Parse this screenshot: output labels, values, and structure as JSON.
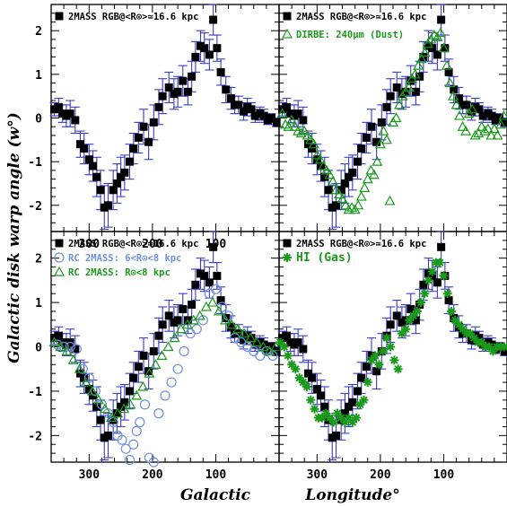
{
  "figure": {
    "ylabel": "Galactic disk warp angle (w°)",
    "xlabel_left": "Galactic",
    "xlabel_right": "Longitude°"
  },
  "colors": {
    "black": "#000000",
    "errorbar": "#3a3ad0",
    "green": "#1a9a1a",
    "blue": "#6f8fe0"
  },
  "chart_data": [
    {
      "type": "scatter",
      "panel": "top-left",
      "xlim": [
        360,
        0
      ],
      "ylim": [
        -2.6,
        2.6
      ],
      "xticks": [
        300,
        200,
        100
      ],
      "yticks": [
        -2,
        -1,
        0,
        1,
        2
      ],
      "legend": [
        {
          "marker": "filled-square",
          "color": "#000000",
          "text": "2MASS RGB@<R⊙>≃16.6 kpc"
        }
      ],
      "series": [
        {
          "name": "2MASS RGB@<R⊙>≃16.6 kpc",
          "marker": "filled-square",
          "errorbars": true,
          "ref": "rgb"
        }
      ]
    },
    {
      "type": "scatter",
      "panel": "top-right",
      "xlim": [
        360,
        0
      ],
      "ylim": [
        -2.6,
        2.6
      ],
      "legend": [
        {
          "marker": "filled-square",
          "color": "#000000",
          "text": "2MASS RGB@<R⊙>≃16.6 kpc"
        },
        {
          "marker": "open-triangle",
          "color": "#1a9a1a",
          "text": "DIRBE: 240μm (Dust)"
        }
      ],
      "series": [
        {
          "name": "2MASS RGB@<R⊙>≃16.6 kpc",
          "marker": "filled-square",
          "errorbars": true,
          "ref": "rgb"
        },
        {
          "name": "DIRBE: 240μm (Dust)",
          "marker": "open-triangle",
          "color": "#1a9a1a",
          "x": [
            355,
            350,
            345,
            340,
            335,
            330,
            325,
            320,
            315,
            310,
            305,
            300,
            295,
            290,
            285,
            280,
            275,
            270,
            265,
            260,
            255,
            250,
            245,
            240,
            235,
            230,
            225,
            220,
            215,
            210,
            205,
            200,
            195,
            190,
            185,
            180,
            175,
            170,
            165,
            160,
            155,
            150,
            145,
            140,
            135,
            130,
            125,
            120,
            115,
            110,
            105,
            100,
            95,
            90,
            85,
            80,
            75,
            70,
            65,
            60,
            55,
            50,
            45,
            40,
            35,
            30,
            25,
            20,
            15,
            10,
            5
          ],
          "y": [
            0.1,
            -0.15,
            -0.2,
            -0.05,
            -0.2,
            -0.3,
            -0.35,
            -0.3,
            -0.4,
            -0.5,
            -0.6,
            -0.85,
            -0.95,
            -1.1,
            -1.2,
            -1.3,
            -1.45,
            -1.65,
            -1.75,
            -1.85,
            -2.0,
            -2.1,
            -2.05,
            -2.1,
            -2.0,
            -1.8,
            -1.6,
            -1.4,
            -1.2,
            -1.3,
            -1.0,
            -0.6,
            -0.3,
            -0.5,
            -1.9,
            -0.1,
            0.0,
            0.3,
            0.5,
            0.6,
            0.7,
            0.9,
            1.0,
            1.2,
            1.35,
            1.5,
            1.7,
            1.8,
            1.9,
            1.85,
            1.95,
            1.6,
            1.2,
            0.8,
            0.5,
            0.3,
            0.05,
            -0.2,
            -0.3,
            0.1,
            0.2,
            -0.4,
            -0.35,
            -0.2,
            -0.3,
            -0.25,
            -0.4,
            -0.25,
            -0.4,
            -0.15,
            0.05
          ]
        }
      ]
    },
    {
      "type": "scatter",
      "panel": "bottom-left",
      "xlim": [
        360,
        0
      ],
      "ylim": [
        -2.6,
        2.6
      ],
      "xticks": [
        300,
        200,
        100
      ],
      "yticks": [
        -2,
        -1,
        0,
        1,
        2
      ],
      "legend": [
        {
          "marker": "filled-square",
          "color": "#000000",
          "text": "2MASS RGB@<R⊙>≃16.6 kpc"
        },
        {
          "marker": "open-circle",
          "color": "#6f8fe0",
          "text": "RC 2MASS: 6<R⊙<8 kpc"
        },
        {
          "marker": "open-triangle",
          "color": "#1a9a1a",
          "text": "RC 2MASS: R⊙<8 kpc"
        }
      ],
      "series": [
        {
          "name": "2MASS RGB@<R⊙>≃16.6 kpc",
          "marker": "filled-square",
          "errorbars": true,
          "ref": "rgb"
        },
        {
          "name": "RC 2MASS: 6<R⊙<8 kpc",
          "marker": "open-circle",
          "color": "#6f8fe0",
          "x": [
            350,
            340,
            330,
            320,
            310,
            300,
            290,
            280,
            270,
            262,
            255,
            248,
            242,
            236,
            230,
            225,
            220,
            212,
            205,
            198,
            190,
            180,
            170,
            160,
            150,
            140,
            130,
            120,
            110,
            100,
            90,
            80,
            70,
            60,
            50,
            40,
            30,
            20,
            10
          ],
          "y": [
            0.05,
            0.0,
            0.0,
            -0.05,
            -0.5,
            -0.7,
            -1.0,
            -1.3,
            -1.5,
            -1.7,
            -2.0,
            -2.1,
            -2.3,
            -2.55,
            -2.2,
            -1.9,
            -1.7,
            -1.3,
            -2.5,
            -2.6,
            -1.5,
            -1.1,
            -0.8,
            -0.5,
            -0.1,
            0.3,
            0.4,
            0.6,
            1.2,
            1.3,
            0.9,
            0.7,
            0.2,
            0.1,
            0.0,
            -0.1,
            -0.2,
            -0.1,
            -0.2
          ]
        },
        {
          "name": "RC 2MASS: R⊙<8 kpc",
          "marker": "open-triangle",
          "color": "#1a9a1a",
          "x": [
            355,
            345,
            335,
            325,
            315,
            305,
            295,
            285,
            275,
            265,
            255,
            245,
            235,
            225,
            215,
            205,
            195,
            185,
            175,
            165,
            155,
            145,
            135,
            125,
            115,
            105,
            95,
            85,
            75,
            65,
            55,
            45,
            35,
            25,
            15,
            5
          ],
          "y": [
            0.1,
            0.0,
            -0.1,
            -0.3,
            -0.5,
            -0.8,
            -1.0,
            -1.2,
            -1.4,
            -1.6,
            -1.5,
            -1.4,
            -1.3,
            -1.1,
            -0.9,
            -0.6,
            -0.4,
            -0.2,
            0.0,
            0.2,
            0.4,
            0.5,
            0.6,
            0.7,
            0.9,
            1.0,
            0.8,
            0.6,
            0.5,
            0.4,
            0.3,
            0.2,
            0.1,
            0.0,
            -0.1,
            0.0
          ]
        }
      ]
    },
    {
      "type": "scatter",
      "panel": "bottom-right",
      "xlim": [
        360,
        0
      ],
      "ylim": [
        -2.6,
        2.6
      ],
      "xticks": [
        300,
        200,
        100
      ],
      "legend": [
        {
          "marker": "filled-square",
          "color": "#000000",
          "text": "2MASS RGB@<R⊙>≃16.6 kpc"
        },
        {
          "marker": "asterisk",
          "color": "#1a9a1a",
          "text": "HI (Gas)"
        }
      ],
      "series": [
        {
          "name": "2MASS RGB@<R⊙>≃16.6 kpc",
          "marker": "filled-square",
          "errorbars": true,
          "ref": "rgb"
        },
        {
          "name": "HI (Gas)",
          "marker": "asterisk",
          "color": "#1a9a1a",
          "x": [
            358,
            352,
            346,
            340,
            334,
            328,
            322,
            316,
            310,
            304,
            298,
            292,
            286,
            280,
            274,
            268,
            262,
            256,
            250,
            244,
            238,
            232,
            226,
            220,
            214,
            208,
            202,
            196,
            190,
            184,
            178,
            172,
            166,
            160,
            154,
            148,
            142,
            136,
            130,
            124,
            118,
            112,
            106,
            100,
            94,
            88,
            82,
            76,
            70,
            64,
            58,
            52,
            46,
            40,
            34,
            28,
            22,
            16,
            10,
            4
          ],
          "y": [
            0.1,
            0.0,
            -0.2,
            -0.4,
            -0.5,
            -0.7,
            -0.8,
            -0.9,
            -1.2,
            -1.4,
            -1.6,
            -1.6,
            -1.5,
            -1.6,
            -1.7,
            -1.5,
            -1.6,
            -1.7,
            -1.6,
            -1.7,
            -1.6,
            -1.3,
            -1.2,
            -0.8,
            -0.3,
            -0.2,
            -0.4,
            -0.1,
            0.2,
            0.0,
            -0.3,
            -0.5,
            0.3,
            0.4,
            0.6,
            0.7,
            0.8,
            1.0,
            1.2,
            1.5,
            1.7,
            1.9,
            1.9,
            1.6,
            1.2,
            0.8,
            0.6,
            0.5,
            0.4,
            0.3,
            0.3,
            0.2,
            0.1,
            0.1,
            0.0,
            0.0,
            -0.1,
            0.0,
            0.0,
            0.0
          ]
        }
      ]
    }
  ],
  "rgb": {
    "x": [
      355,
      348,
      342,
      336,
      330,
      322,
      314,
      308,
      300,
      294,
      288,
      282,
      276,
      270,
      262,
      256,
      250,
      244,
      236,
      230,
      222,
      214,
      206,
      198,
      190,
      184,
      174,
      166,
      160,
      152,
      144,
      138,
      132,
      124,
      118,
      110,
      104,
      98,
      92,
      84,
      76,
      70,
      64,
      56,
      50,
      44,
      38,
      30,
      24,
      18,
      12,
      4
    ],
    "y": [
      0.2,
      0.25,
      0.1,
      0.05,
      0.1,
      -0.05,
      -0.6,
      -0.7,
      -0.95,
      -1.1,
      -1.35,
      -1.65,
      -2.05,
      -2.0,
      -1.65,
      -1.5,
      -1.35,
      -1.25,
      -1.0,
      -0.7,
      -0.45,
      -0.2,
      -0.55,
      -0.1,
      0.25,
      0.5,
      0.7,
      0.55,
      0.6,
      0.85,
      0.6,
      0.95,
      1.4,
      1.65,
      1.6,
      1.45,
      2.25,
      1.6,
      1.05,
      0.65,
      0.45,
      0.3,
      0.3,
      0.15,
      0.25,
      0.2,
      0.05,
      0.1,
      0.05,
      -0.05,
      0.0,
      -0.1
    ],
    "err": [
      0.15,
      0.2,
      0.2,
      0.25,
      0.3,
      0.3,
      0.3,
      0.35,
      0.35,
      0.35,
      0.45,
      0.45,
      0.5,
      0.5,
      0.45,
      0.45,
      0.45,
      0.4,
      0.4,
      0.35,
      0.35,
      0.4,
      0.4,
      0.4,
      0.4,
      0.4,
      0.35,
      0.35,
      0.35,
      0.35,
      0.3,
      0.35,
      0.35,
      0.35,
      0.35,
      0.35,
      0.35,
      0.3,
      0.3,
      0.3,
      0.25,
      0.2,
      0.2,
      0.2,
      0.2,
      0.15,
      0.15,
      0.15,
      0.15,
      0.1,
      0.1,
      0.1
    ]
  }
}
